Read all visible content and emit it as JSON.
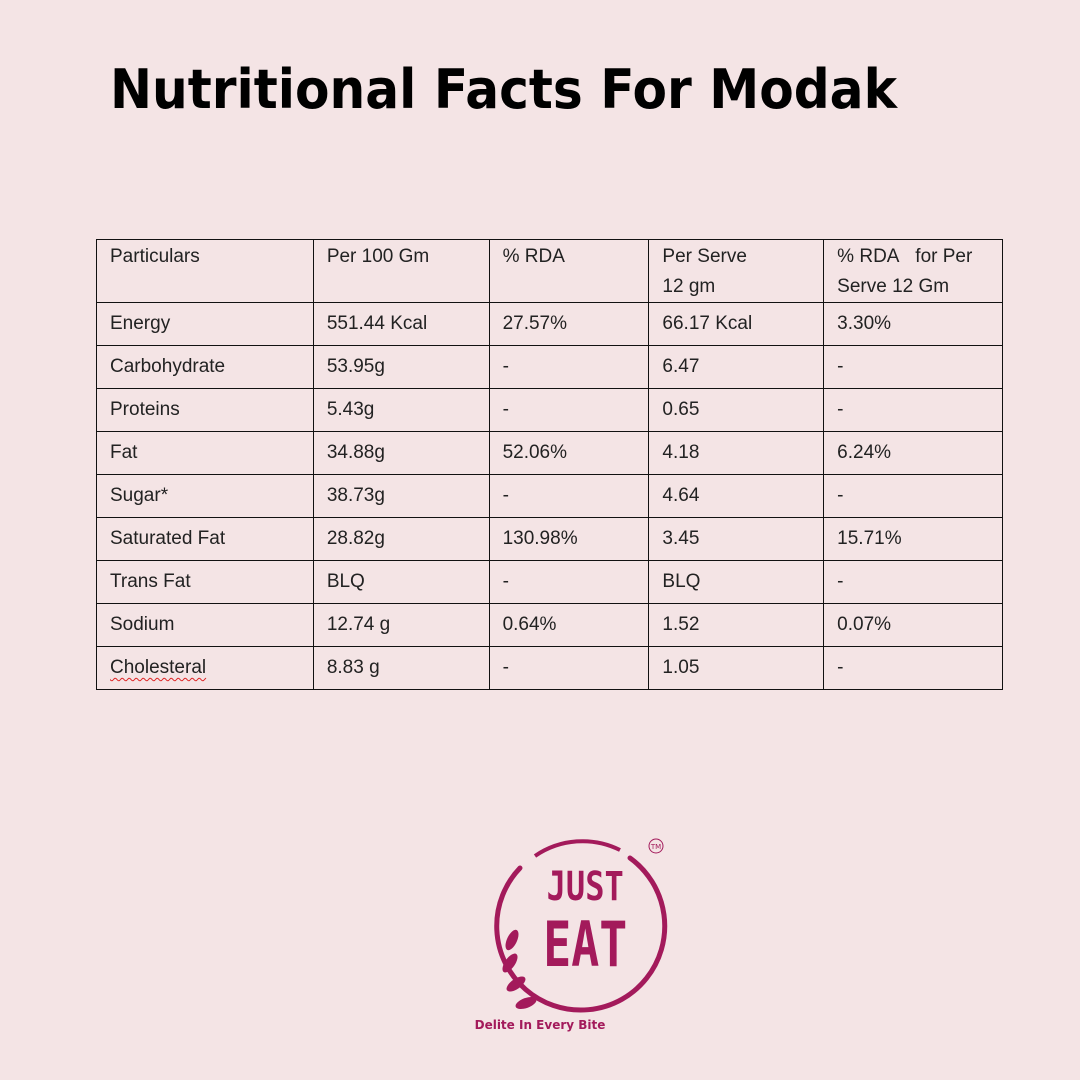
{
  "title": "Nutritional Facts For Modak",
  "table": {
    "headers": [
      "Particulars",
      "Per 100 Gm",
      "% RDA",
      "Per Serve 12 gm",
      "% RDA   for Per Serve 12 Gm"
    ],
    "rows": [
      [
        "Energy",
        "551.44 Kcal",
        "27.57%",
        "66.17 Kcal",
        "3.30%"
      ],
      [
        "Carbohydrate",
        "53.95g",
        "-",
        "6.47",
        "-"
      ],
      [
        "Proteins",
        "5.43g",
        "-",
        "0.65",
        "-"
      ],
      [
        "Fat",
        "34.88g",
        "52.06%",
        "4.18",
        "6.24%"
      ],
      [
        "Sugar*",
        "38.73g",
        "-",
        "4.64",
        "-"
      ],
      [
        "Saturated Fat",
        "28.82g",
        "130.98%",
        "3.45",
        "15.71%"
      ],
      [
        "Trans Fat",
        "BLQ",
        "-",
        "BLQ",
        "-"
      ],
      [
        "Sodium",
        "12.74 g",
        "0.64%",
        "1.52",
        "0.07%"
      ],
      [
        "Cholesteral",
        "8.83 g",
        "-",
        "1.05",
        "-"
      ]
    ]
  },
  "logo": {
    "line1": "JUST",
    "line2": "EAT",
    "trademark": "TM",
    "tagline": "Delite In Every Bite",
    "color": "#a31a5b"
  }
}
